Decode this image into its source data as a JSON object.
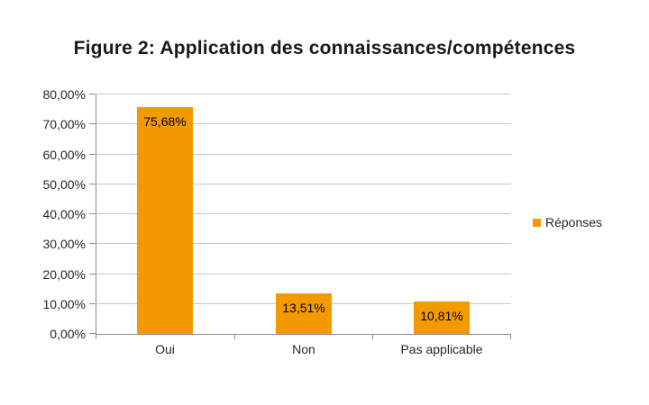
{
  "title": "Figure 2: Application des connaissances/compétences",
  "legend": {
    "label": "Réponses",
    "swatch_icon": "square-icon"
  },
  "colors": {
    "bar": "#F39A00",
    "gridline": "#C6C6C6",
    "axis": "#8C8C8C",
    "text": "#262626"
  },
  "chart_data": {
    "type": "bar",
    "title": "Figure 2: Application des connaissances/compétences",
    "categories": [
      "Oui",
      "Non",
      "Pas applicable"
    ],
    "series": [
      {
        "name": "Réponses",
        "values": [
          75.68,
          13.51,
          10.81
        ]
      }
    ],
    "value_labels": [
      "75,68%",
      "13,51%",
      "10,81%"
    ],
    "xlabel": "",
    "ylabel": "",
    "ylim": [
      0,
      80
    ],
    "ytick_step": 10,
    "ytick_labels": [
      "0,00%",
      "10,00%",
      "20,00%",
      "30,00%",
      "40,00%",
      "50,00%",
      "60,00%",
      "70,00%",
      "80,00%"
    ],
    "grid": true,
    "legend_position": "right",
    "value_label_position": "inside-end"
  }
}
